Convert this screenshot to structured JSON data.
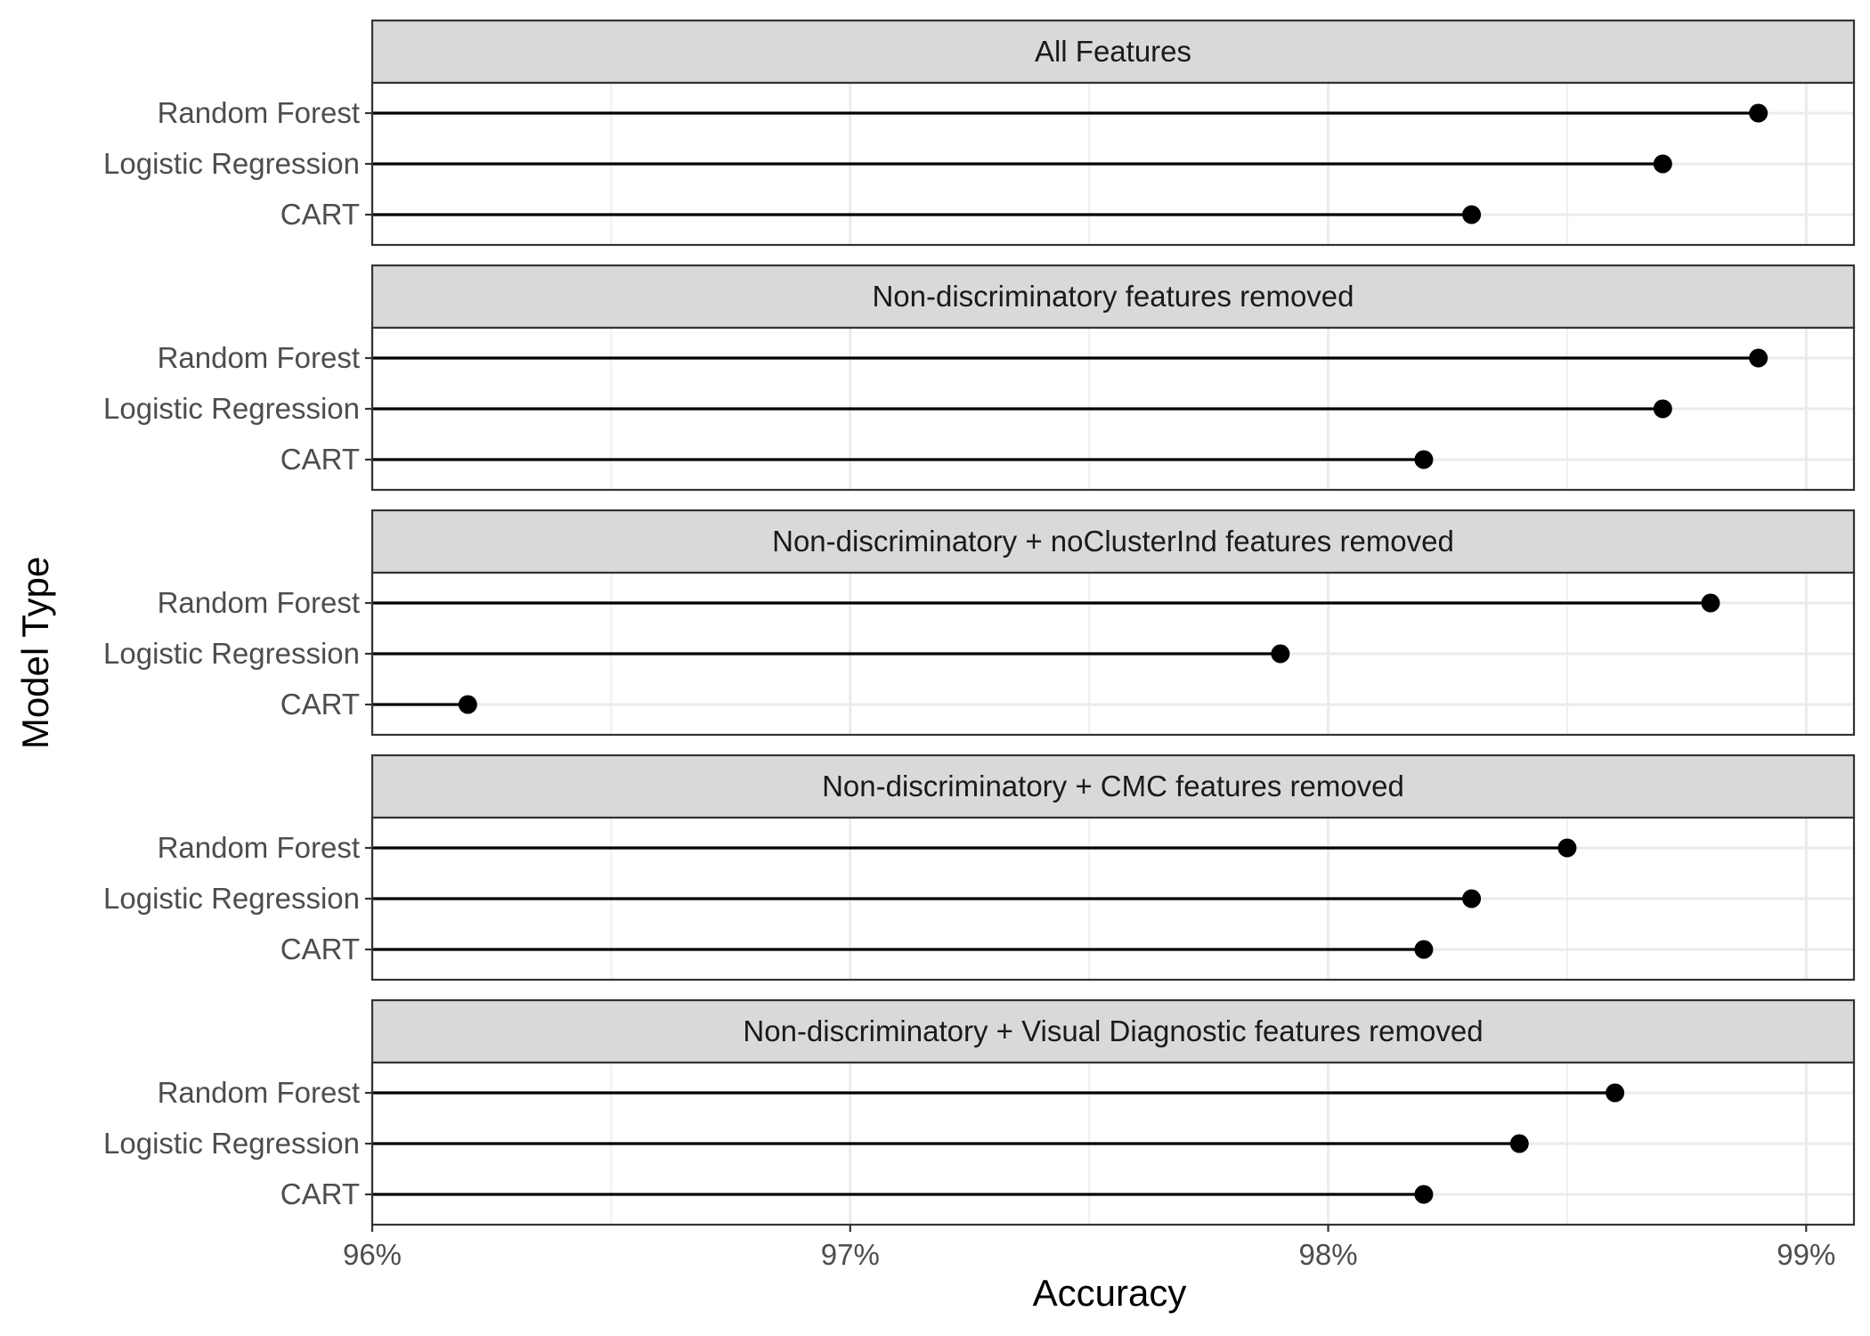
{
  "chart_data": {
    "type": "lollipop",
    "xlabel": "Accuracy",
    "ylabel": "Model Type",
    "xlim": [
      96,
      99.1
    ],
    "x_ticks": [
      96,
      97,
      98,
      99
    ],
    "x_tick_labels": [
      "96%",
      "97%",
      "98%",
      "99%"
    ],
    "x_minor_ticks": [
      96.5,
      97.5,
      98.5
    ],
    "grid": true,
    "categories": [
      "Random Forest",
      "Logistic Regression",
      "CART"
    ],
    "panels": [
      {
        "title": "All Features",
        "values": [
          98.9,
          98.7,
          98.3
        ]
      },
      {
        "title": "Non-discriminatory features removed",
        "values": [
          98.9,
          98.7,
          98.2
        ]
      },
      {
        "title": "Non-discriminatory + noClusterInd features removed",
        "values": [
          98.8,
          97.9,
          96.2
        ]
      },
      {
        "title": "Non-discriminatory + CMC features removed",
        "values": [
          98.5,
          98.3,
          98.2
        ]
      },
      {
        "title": "Non-discriminatory + Visual Diagnostic features removed",
        "values": [
          98.6,
          98.4,
          98.2
        ]
      }
    ],
    "colors": {
      "strip_fill": "#d9d9d9",
      "frame": "#333333",
      "grid": "#ebebeb",
      "mark": "#000000"
    }
  }
}
